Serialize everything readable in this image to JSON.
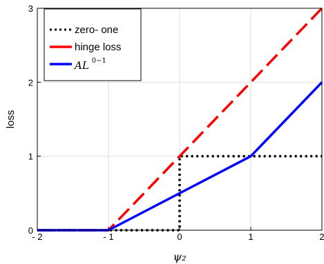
{
  "chart_data": {
    "type": "line",
    "title": "",
    "xlabel": "ψ₂",
    "ylabel": "loss",
    "xlim": [
      -2,
      2
    ],
    "ylim": [
      0,
      3
    ],
    "xticks": [
      -2,
      -1,
      0,
      1,
      2
    ],
    "xtick_labels": [
      "- 2",
      "- 1",
      "0",
      "1",
      "2"
    ],
    "yticks": [
      0,
      1,
      2,
      3
    ],
    "ytick_labels": [
      "0",
      "1",
      "2",
      "3"
    ],
    "grid": true,
    "legend_position": "top-left",
    "series": [
      {
        "key": "zero_one",
        "name": "zero- one",
        "color": "#000000",
        "style": "dotted",
        "points": [
          [
            -2,
            0
          ],
          [
            0,
            0
          ],
          [
            0,
            1
          ],
          [
            2,
            1
          ]
        ]
      },
      {
        "key": "hinge",
        "name": "hinge loss",
        "color": "#ff0000",
        "style": "dashed",
        "points": [
          [
            -2,
            0
          ],
          [
            -1,
            0
          ],
          [
            2,
            3
          ]
        ]
      },
      {
        "key": "al01",
        "name_main": "AL",
        "name_sup": "0−1",
        "color": "#0000ff",
        "style": "solid",
        "points": [
          [
            -2,
            0
          ],
          [
            -1,
            0
          ],
          [
            1,
            1
          ],
          [
            2,
            2
          ]
        ]
      }
    ]
  }
}
